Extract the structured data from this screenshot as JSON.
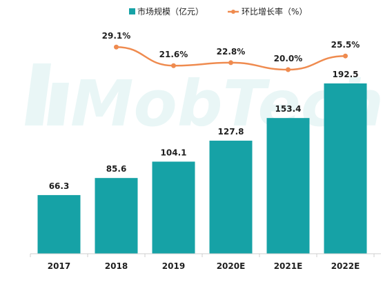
{
  "chart_data": {
    "type": "bar",
    "categories": [
      "2017",
      "2018",
      "2019",
      "2020E",
      "2021E",
      "2022E"
    ],
    "series": [
      {
        "name": "市场规模（亿元）",
        "type": "bar",
        "values": [
          66.3,
          85.6,
          104.1,
          127.8,
          153.4,
          192.5
        ],
        "labels": [
          "66.3",
          "85.6",
          "104.1",
          "127.8",
          "153.4",
          "192.5"
        ]
      },
      {
        "name": "环比增长率（%）",
        "type": "line",
        "values": [
          null,
          29.1,
          21.6,
          22.8,
          20.0,
          25.5
        ],
        "labels": [
          "",
          "29.1%",
          "21.6%",
          "22.8%",
          "20.0%",
          "25.5%"
        ]
      }
    ],
    "colors": {
      "bar": "#16a2a6",
      "line": "#ef8b4f"
    },
    "legend_position": "top",
    "watermark": "MobTech"
  }
}
